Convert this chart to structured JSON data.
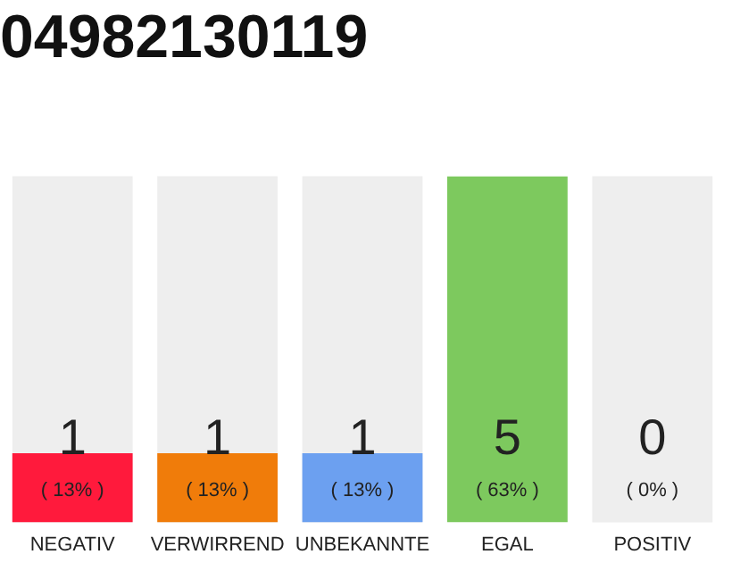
{
  "chart_data": {
    "type": "bar",
    "title": "04982130119",
    "ylim": [
      0,
      5
    ],
    "tick_labels": "x",
    "data_labels": true,
    "categories": [
      "NEGATIV",
      "VERWIRREND",
      "UNBEKANNTE",
      "EGAL",
      "POSITIV"
    ],
    "values": [
      1,
      1,
      1,
      5,
      0
    ],
    "colors": [
      "#ff1a3c",
      "#f07c0a",
      "#6ca0f0",
      "#7dc95e",
      "#aaaaaa"
    ],
    "annotations": [
      "( 13% )",
      "( 13% )",
      "( 13% )",
      "( 63% )",
      "( 0% )"
    ],
    "bands": [
      {
        "axis": "x",
        "from": "NEGATIV",
        "to": "NEGATIV",
        "color": "#eeeeee"
      },
      {
        "axis": "x",
        "from": "VERWIRREND",
        "to": "VERWIRREND",
        "color": "#eeeeee"
      },
      {
        "axis": "x",
        "from": "UNBEKANNTE",
        "to": "UNBEKANNTE",
        "color": "#eeeeee"
      },
      {
        "axis": "x",
        "from": "POSITIV",
        "to": "POSITIV",
        "color": "#eeeeee"
      }
    ],
    "grid": false,
    "legend": false
  }
}
